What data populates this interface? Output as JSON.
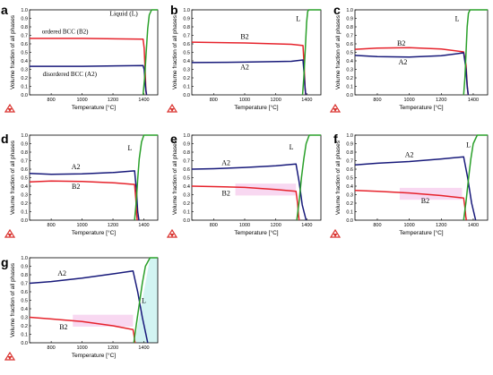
{
  "colors": {
    "a2": "#17197a",
    "b2": "#e6222b",
    "liquid": "#2aa02a",
    "frame": "#000000",
    "b2_shade": "#f3b8e6",
    "liq_shade": "#bff0ec",
    "logo": "#d9322e"
  },
  "chart_data": [
    {
      "type": "line",
      "panel": "a",
      "xlabel": "Temperature [°C]",
      "ylabel": "Volume fraction of all phases",
      "xlim": [
        660,
        1490
      ],
      "ylim": [
        0,
        1.0
      ],
      "xticks": [
        800,
        1000,
        1200,
        1400
      ],
      "yticks": [
        0,
        0.1,
        0.2,
        0.3,
        0.4,
        0.5,
        0.6,
        0.7,
        0.8,
        0.9,
        1.0
      ],
      "series": [
        {
          "name": "ordered BCC (B2)",
          "color": "#e6222b",
          "x": [
            660,
            1000,
            1395,
            1402,
            1408,
            1412,
            1416
          ],
          "y": [
            0.665,
            0.665,
            0.655,
            0.55,
            0.3,
            0.1,
            0.0
          ]
        },
        {
          "name": "disordered BCC (A2)",
          "color": "#17197a",
          "x": [
            660,
            1000,
            1395,
            1402,
            1408,
            1413,
            1418
          ],
          "y": [
            0.335,
            0.335,
            0.345,
            0.3,
            0.15,
            0.05,
            0.0
          ]
        },
        {
          "name": "Liquid (L)",
          "color": "#2aa02a",
          "x": [
            1395,
            1405,
            1415,
            1425,
            1435,
            1450,
            1490
          ],
          "y": [
            0.0,
            0.2,
            0.5,
            0.78,
            0.94,
            1.0,
            1.0
          ]
        }
      ],
      "annotations": [
        {
          "text": "Liquid (L)",
          "x": 1270,
          "y": 0.93
        },
        {
          "text": "ordered BCC (B2)",
          "x": 890,
          "y": 0.72
        },
        {
          "text": "disordered BCC (A2)",
          "x": 920,
          "y": 0.22
        }
      ]
    },
    {
      "type": "line",
      "panel": "b",
      "xlabel": "Temperature [°C]",
      "ylabel": "Volume fraction of all phases",
      "xlim": [
        660,
        1490
      ],
      "ylim": [
        0,
        1.0
      ],
      "xticks": [
        800,
        1000,
        1200,
        1400
      ],
      "yticks": [
        0,
        0.1,
        0.2,
        0.3,
        0.4,
        0.5,
        0.6,
        0.7,
        0.8,
        0.9,
        1.0
      ],
      "series": [
        {
          "name": "B2",
          "color": "#e6222b",
          "x": [
            660,
            1000,
            1300,
            1375,
            1382,
            1388,
            1392
          ],
          "y": [
            0.62,
            0.61,
            0.595,
            0.58,
            0.35,
            0.1,
            0.0
          ]
        },
        {
          "name": "A2",
          "color": "#17197a",
          "x": [
            660,
            1000,
            1300,
            1375,
            1382,
            1388,
            1393
          ],
          "y": [
            0.38,
            0.385,
            0.395,
            0.41,
            0.25,
            0.08,
            0.0
          ]
        },
        {
          "name": "L",
          "color": "#2aa02a",
          "x": [
            1372,
            1380,
            1390,
            1398,
            1405,
            1412,
            1490
          ],
          "y": [
            0.0,
            0.2,
            0.55,
            0.85,
            0.98,
            1.0,
            1.0
          ]
        }
      ],
      "annotations": [
        {
          "text": "L",
          "x": 1345,
          "y": 0.87
        },
        {
          "text": "B2",
          "x": 1000,
          "y": 0.66
        },
        {
          "text": "A2",
          "x": 1000,
          "y": 0.3
        }
      ]
    },
    {
      "type": "line",
      "panel": "c",
      "xlabel": "Temperature [°C]",
      "ylabel": "Volume fraction of all phases",
      "xlim": [
        660,
        1490
      ],
      "ylim": [
        0,
        1.0
      ],
      "xticks": [
        800,
        1000,
        1200,
        1400
      ],
      "yticks": [
        0,
        0.1,
        0.2,
        0.3,
        0.4,
        0.5,
        0.6,
        0.7,
        0.8,
        0.9,
        1.0
      ],
      "series": [
        {
          "name": "B2",
          "color": "#e6222b",
          "x": [
            660,
            800,
            1000,
            1200,
            1340,
            1355,
            1362,
            1368
          ],
          "y": [
            0.535,
            0.55,
            0.555,
            0.54,
            0.505,
            0.35,
            0.12,
            0.0
          ]
        },
        {
          "name": "A2",
          "color": "#17197a",
          "x": [
            660,
            800,
            1000,
            1200,
            1340,
            1355,
            1362,
            1369
          ],
          "y": [
            0.465,
            0.45,
            0.445,
            0.46,
            0.495,
            0.3,
            0.1,
            0.0
          ]
        },
        {
          "name": "L",
          "color": "#2aa02a",
          "x": [
            1340,
            1348,
            1355,
            1362,
            1370,
            1380,
            1490
          ],
          "y": [
            0.0,
            0.2,
            0.5,
            0.8,
            0.96,
            1.0,
            1.0
          ]
        }
      ],
      "annotations": [
        {
          "text": "L",
          "x": 1300,
          "y": 0.87
        },
        {
          "text": "B2",
          "x": 950,
          "y": 0.58
        },
        {
          "text": "A2",
          "x": 960,
          "y": 0.36
        }
      ]
    },
    {
      "type": "line",
      "panel": "d",
      "xlabel": "Temperature [°C]",
      "ylabel": "Volume fraction of all phases",
      "xlim": [
        660,
        1490
      ],
      "ylim": [
        0,
        1.0
      ],
      "xticks": [
        800,
        1000,
        1200,
        1400
      ],
      "yticks": [
        0,
        0.1,
        0.2,
        0.3,
        0.4,
        0.5,
        0.6,
        0.7,
        0.8,
        0.9,
        1.0
      ],
      "series": [
        {
          "name": "A2",
          "color": "#17197a",
          "x": [
            660,
            800,
            1000,
            1200,
            1340,
            1352,
            1360,
            1368
          ],
          "y": [
            0.55,
            0.54,
            0.545,
            0.56,
            0.58,
            0.35,
            0.1,
            0.0
          ]
        },
        {
          "name": "B2",
          "color": "#e6222b",
          "x": [
            660,
            800,
            1000,
            1200,
            1340,
            1348,
            1353,
            1357
          ],
          "y": [
            0.45,
            0.46,
            0.455,
            0.44,
            0.42,
            0.25,
            0.08,
            0.0
          ]
        },
        {
          "name": "L",
          "color": "#2aa02a",
          "x": [
            1340,
            1350,
            1360,
            1370,
            1385,
            1400,
            1490
          ],
          "y": [
            0.0,
            0.2,
            0.48,
            0.72,
            0.92,
            1.0,
            1.0
          ]
        }
      ],
      "annotations": [
        {
          "text": "L",
          "x": 1310,
          "y": 0.82
        },
        {
          "text": "A2",
          "x": 960,
          "y": 0.6
        },
        {
          "text": "B2",
          "x": 960,
          "y": 0.37
        }
      ]
    },
    {
      "type": "line",
      "panel": "e",
      "xlabel": "Temperature [°C]",
      "ylabel": "Volume fraction of all phases",
      "xlim": [
        660,
        1490
      ],
      "ylim": [
        0,
        1.0
      ],
      "xticks": [
        800,
        1000,
        1200,
        1400
      ],
      "yticks": [
        0,
        0.1,
        0.2,
        0.3,
        0.4,
        0.5,
        0.6,
        0.7,
        0.8,
        0.9,
        1.0
      ],
      "series": [
        {
          "name": "A2",
          "color": "#17197a",
          "x": [
            660,
            800,
            1000,
            1200,
            1330,
            1350,
            1370,
            1395
          ],
          "y": [
            0.6,
            0.605,
            0.62,
            0.64,
            0.66,
            0.45,
            0.18,
            0.0
          ]
        },
        {
          "name": "B2",
          "color": "#e6222b",
          "x": [
            660,
            800,
            1000,
            1200,
            1330,
            1340,
            1346,
            1350
          ],
          "y": [
            0.4,
            0.395,
            0.385,
            0.36,
            0.34,
            0.2,
            0.06,
            0.0
          ]
        },
        {
          "name": "L",
          "color": "#2aa02a",
          "x": [
            1335,
            1350,
            1365,
            1380,
            1395,
            1415,
            1490
          ],
          "y": [
            0.0,
            0.22,
            0.5,
            0.72,
            0.9,
            1.0,
            1.0
          ]
        }
      ],
      "annotations": [
        {
          "text": "L",
          "x": 1300,
          "y": 0.83
        },
        {
          "text": "A2",
          "x": 880,
          "y": 0.65
        },
        {
          "text": "B2",
          "x": 880,
          "y": 0.29
        }
      ]
    },
    {
      "type": "line",
      "panel": "f",
      "xlabel": "Temperature [°C]",
      "ylabel": "Volume fraction of all phases",
      "xlim": [
        660,
        1490
      ],
      "ylim": [
        0,
        1.0
      ],
      "xticks": [
        800,
        1000,
        1200,
        1400
      ],
      "yticks": [
        0,
        0.1,
        0.2,
        0.3,
        0.4,
        0.5,
        0.6,
        0.7,
        0.8,
        0.9,
        1.0
      ],
      "series": [
        {
          "name": "A2",
          "color": "#17197a",
          "x": [
            660,
            800,
            1000,
            1200,
            1340,
            1365,
            1390,
            1415
          ],
          "y": [
            0.65,
            0.67,
            0.69,
            0.72,
            0.745,
            0.5,
            0.2,
            0.0
          ]
        },
        {
          "name": "B2",
          "color": "#e6222b",
          "x": [
            660,
            800,
            1000,
            1200,
            1340,
            1348,
            1353,
            1357
          ],
          "y": [
            0.35,
            0.34,
            0.32,
            0.29,
            0.26,
            0.15,
            0.05,
            0.0
          ]
        },
        {
          "name": "L",
          "color": "#2aa02a",
          "x": [
            1340,
            1355,
            1370,
            1385,
            1400,
            1425,
            1490
          ],
          "y": [
            0.0,
            0.22,
            0.48,
            0.72,
            0.9,
            1.0,
            1.0
          ]
        }
      ],
      "annotations": [
        {
          "text": "L",
          "x": 1370,
          "y": 0.86
        },
        {
          "text": "A2",
          "x": 1000,
          "y": 0.74
        },
        {
          "text": "B2",
          "x": 1100,
          "y": 0.2
        }
      ]
    },
    {
      "type": "line",
      "panel": "g",
      "xlabel": "Temperature [°C]",
      "ylabel": "Volume fraction of all phases",
      "xlim": [
        660,
        1490
      ],
      "ylim": [
        0,
        1.0
      ],
      "xticks": [
        800,
        1000,
        1200,
        1400
      ],
      "yticks": [
        0,
        0.1,
        0.2,
        0.3,
        0.4,
        0.5,
        0.6,
        0.7,
        0.8,
        0.9,
        1.0
      ],
      "series": [
        {
          "name": "A2",
          "color": "#17197a",
          "x": [
            660,
            800,
            1000,
            1200,
            1330,
            1360,
            1390,
            1425
          ],
          "y": [
            0.7,
            0.72,
            0.76,
            0.81,
            0.845,
            0.6,
            0.3,
            0.0
          ]
        },
        {
          "name": "B2",
          "color": "#e6222b",
          "x": [
            660,
            800,
            1000,
            1200,
            1330,
            1336,
            1340,
            1343
          ],
          "y": [
            0.3,
            0.28,
            0.25,
            0.2,
            0.155,
            0.09,
            0.03,
            0.0
          ]
        },
        {
          "name": "L",
          "color": "#2aa02a",
          "x": [
            1335,
            1350,
            1370,
            1390,
            1410,
            1440,
            1490
          ],
          "y": [
            0.0,
            0.2,
            0.45,
            0.7,
            0.9,
            1.0,
            1.0
          ]
        }
      ],
      "annotations": [
        {
          "text": "L",
          "x": 1400,
          "y": 0.47
        },
        {
          "text": "A2",
          "x": 870,
          "y": 0.79
        },
        {
          "text": "B2",
          "x": 880,
          "y": 0.16
        }
      ]
    }
  ]
}
